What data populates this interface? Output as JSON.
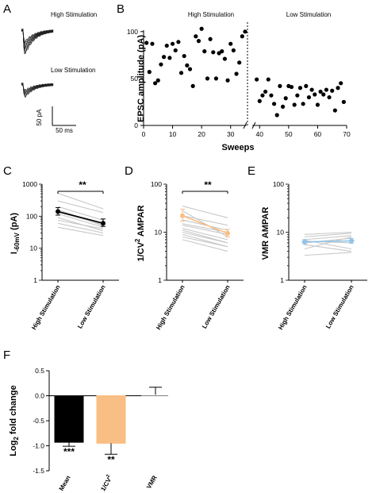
{
  "panels": {
    "a": {
      "letter": "A",
      "label_high": "High Stimulation",
      "label_low": "Low Stimulation",
      "scale_y": "50 pA",
      "scale_x": "50 ms"
    },
    "b": {
      "letter": "B",
      "label_high": "High Stimulation",
      "label_low": "Low Stimulation"
    },
    "c": {
      "letter": "C",
      "sig": "**"
    },
    "d": {
      "letter": "D",
      "sig": "**"
    },
    "e": {
      "letter": "E"
    },
    "f": {
      "letter": "F"
    }
  },
  "colors": {
    "black": "#000000",
    "gray_lines": "#c8c8c8",
    "orange": "#f9be83",
    "blue": "#93c4e8"
  },
  "chart_data": [
    {
      "id": "B",
      "type": "scatter",
      "xlabel": "Sweeps",
      "ylabel": "EPSC amplitude (pA)",
      "xlim": [
        0,
        70
      ],
      "ylim": [
        0,
        110
      ],
      "xticks": [
        "0",
        "10",
        "20",
        "30",
        "40",
        "50",
        "60",
        "70"
      ],
      "yticks": [
        "0",
        "50",
        "100"
      ],
      "axis_break": "between 35 and 38",
      "divider_x": 35,
      "x": [
        1,
        2,
        3,
        4,
        5,
        6,
        7,
        8,
        9,
        10,
        11,
        12,
        13,
        14,
        15,
        16,
        17,
        18,
        19,
        20,
        21,
        22,
        23,
        24,
        25,
        26,
        27,
        28,
        29,
        30,
        31,
        32,
        33,
        34,
        35,
        39,
        40,
        41,
        42,
        43,
        44,
        45,
        46,
        47,
        48,
        49,
        50,
        51,
        52,
        53,
        54,
        55,
        56,
        57,
        58,
        59,
        60,
        61,
        62,
        63,
        64,
        65,
        66,
        67,
        68,
        69
      ],
      "y": [
        88,
        57,
        87,
        45,
        48,
        65,
        73,
        85,
        72,
        87,
        80,
        89,
        56,
        74,
        64,
        60,
        42,
        95,
        90,
        103,
        79,
        50,
        92,
        78,
        50,
        77,
        79,
        71,
        48,
        87,
        80,
        55,
        67,
        95,
        100,
        49,
        26,
        32,
        36,
        49,
        32,
        23,
        11,
        42,
        20,
        29,
        42,
        41,
        22,
        32,
        40,
        23,
        42,
        30,
        38,
        33,
        22,
        36,
        33,
        38,
        30,
        37,
        16,
        40,
        45,
        25
      ]
    },
    {
      "id": "C",
      "type": "line",
      "ylabel_main": "I",
      "ylabel_sub": "-60mV",
      "ylabel_unit": " (pA)",
      "yscale": "log",
      "ylim": [
        1,
        1000
      ],
      "yticks": [
        "1",
        "10",
        "100",
        "1000"
      ],
      "categories": [
        "High Stimulation",
        "Low Stimulation"
      ],
      "individual": [
        [
          520,
          170
        ],
        [
          300,
          130
        ],
        [
          200,
          75
        ],
        [
          160,
          50
        ],
        [
          135,
          55
        ],
        [
          120,
          45
        ],
        [
          90,
          35
        ],
        [
          75,
          40
        ],
        [
          60,
          30
        ],
        [
          45,
          25
        ]
      ],
      "mean": {
        "values": [
          140,
          60
        ],
        "err_high": [
          185,
          82
        ],
        "err_low": [
          108,
          48
        ]
      }
    },
    {
      "id": "D",
      "type": "line",
      "ylabel_main": "1/CV",
      "ylabel_sup": "2",
      "ylabel_unit": " AMPAR",
      "yscale": "log",
      "ylim": [
        1,
        100
      ],
      "yticks": [
        "1",
        "10",
        "100"
      ],
      "categories": [
        "High Stimulation",
        "Low Stimulation"
      ],
      "individual": [
        [
          35,
          20
        ],
        [
          28,
          8
        ],
        [
          22,
          14
        ],
        [
          18,
          11
        ],
        [
          15,
          10
        ],
        [
          14,
          9
        ],
        [
          12,
          7
        ],
        [
          11,
          6
        ],
        [
          10,
          6
        ],
        [
          9,
          5
        ],
        [
          8,
          5
        ],
        [
          7,
          4
        ]
      ],
      "mean": {
        "values": [
          22,
          9.5
        ],
        "err_high": [
          30,
          11.5
        ],
        "err_low": [
          17,
          8
        ]
      }
    },
    {
      "id": "E",
      "type": "line",
      "ylabel": "VMR AMPAR",
      "yscale": "log",
      "ylim": [
        1,
        100
      ],
      "yticks": [
        "1",
        "10",
        "100"
      ],
      "categories": [
        "High Stimulation",
        "Low Stimulation"
      ],
      "individual": [
        [
          9,
          10
        ],
        [
          8,
          9.5
        ],
        [
          7,
          8.5
        ],
        [
          6.8,
          4.5
        ],
        [
          6.5,
          6
        ],
        [
          6,
          7.5
        ],
        [
          5.5,
          4
        ],
        [
          4.5,
          8
        ],
        [
          3.3,
          3.8
        ]
      ],
      "mean": {
        "values": [
          6.3,
          6.6
        ],
        "err_high": [
          7,
          7.4
        ],
        "err_low": [
          5.7,
          5.9
        ]
      }
    },
    {
      "id": "F",
      "type": "bar",
      "ylabel_main": "Log",
      "ylabel_sub": "2",
      "ylabel_unit": " fold change",
      "ylim": [
        -1.5,
        0.5
      ],
      "yticks": [
        "0.5",
        "0.0",
        "-0.5",
        "-1.0",
        "-1.5"
      ],
      "categories": [
        "Mean",
        "1/CV",
        "VMR"
      ],
      "category_sup": [
        "",
        "2",
        ""
      ],
      "values": [
        -0.93,
        -0.95,
        0.02
      ],
      "errors": [
        0.08,
        0.22,
        0.15
      ],
      "sig": [
        "***",
        "**",
        ""
      ],
      "colors": [
        "#000000",
        "#f9be83",
        "#ffffff"
      ]
    }
  ]
}
